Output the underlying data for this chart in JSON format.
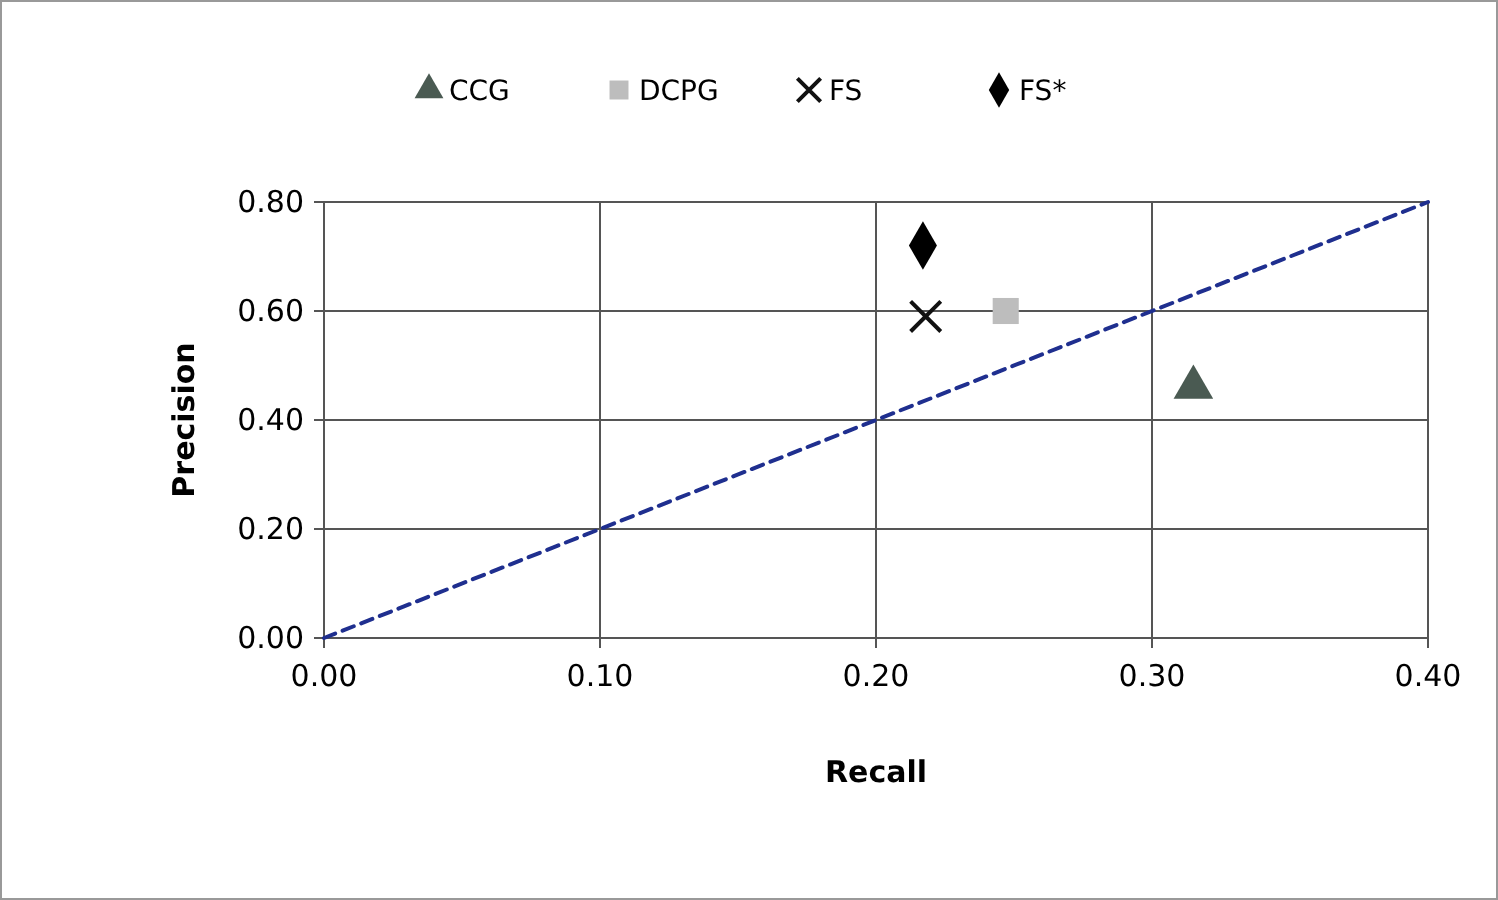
{
  "chart_data": {
    "type": "scatter",
    "xlabel": "Recall",
    "ylabel": "Precision",
    "legend": "top",
    "grid": true,
    "xlim": [
      0,
      0.4
    ],
    "ylim": [
      0,
      0.8
    ],
    "xticks": [
      {
        "value": 0,
        "label": "0.00"
      },
      {
        "value": 0.1,
        "label": "0.10"
      },
      {
        "value": 0.2,
        "label": "0.20"
      },
      {
        "value": 0.3,
        "label": "0.30"
      },
      {
        "value": 0.4,
        "label": "0.40"
      }
    ],
    "yticks": [
      {
        "value": 0,
        "label": "0.00"
      },
      {
        "value": 0.2,
        "label": "0.20"
      },
      {
        "value": 0.4,
        "label": "0.40"
      },
      {
        "value": 0.6,
        "label": "0.60"
      },
      {
        "value": 0.8,
        "label": "0.80"
      }
    ],
    "series": [
      {
        "name": "CCG",
        "color": "#4a5a52",
        "marker": "triangle",
        "x": [
          0.315
        ],
        "values": [
          0.46
        ]
      },
      {
        "name": "DCPG",
        "color": "#bdbdbd",
        "marker": "square",
        "x": [
          0.247
        ],
        "values": [
          0.6
        ]
      },
      {
        "name": "FS",
        "color": "#111111",
        "marker": "cross",
        "x": [
          0.218
        ],
        "values": [
          0.59
        ]
      },
      {
        "name": "FS*",
        "color": "#000000",
        "marker": "diamond",
        "x": [
          0.217
        ],
        "values": [
          0.72
        ]
      },
      {
        "type": "line",
        "color": "#1f2f8f",
        "line_style": "dashed",
        "marker": "none",
        "x": [
          0,
          0.4
        ],
        "values": [
          0,
          0.8
        ]
      }
    ]
  }
}
